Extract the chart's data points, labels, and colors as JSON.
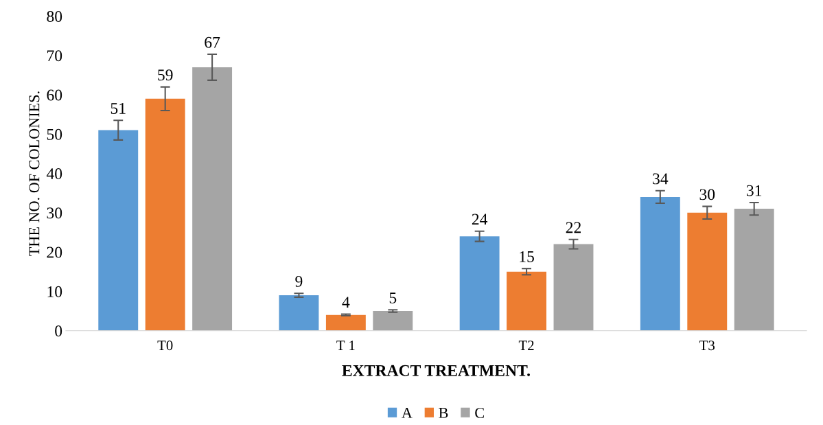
{
  "chart_data": {
    "type": "bar",
    "xlabel": "EXTRACT TREATMENT.",
    "ylabel": "THE NO. OF COLONIES.",
    "categories": [
      "T0",
      "T 1",
      "T2",
      "T3"
    ],
    "series": [
      {
        "name": "A",
        "color": "#5b9bd5",
        "values": [
          51,
          9,
          24,
          34
        ],
        "errors": [
          2.5,
          0.5,
          1.3,
          1.6
        ]
      },
      {
        "name": "B",
        "color": "#ed7d31",
        "values": [
          59,
          4,
          15,
          30
        ],
        "errors": [
          3,
          0.2,
          0.8,
          1.6
        ]
      },
      {
        "name": "C",
        "color": "#a5a5a5",
        "values": [
          67,
          5,
          22,
          31
        ],
        "errors": [
          3.3,
          0.3,
          1.2,
          1.6
        ]
      }
    ],
    "ylim": [
      0,
      80
    ],
    "yticks": [
      0,
      10,
      20,
      30,
      40,
      50,
      60,
      70,
      80
    ],
    "data_labels": true,
    "grid": false,
    "legend": "bottom"
  }
}
